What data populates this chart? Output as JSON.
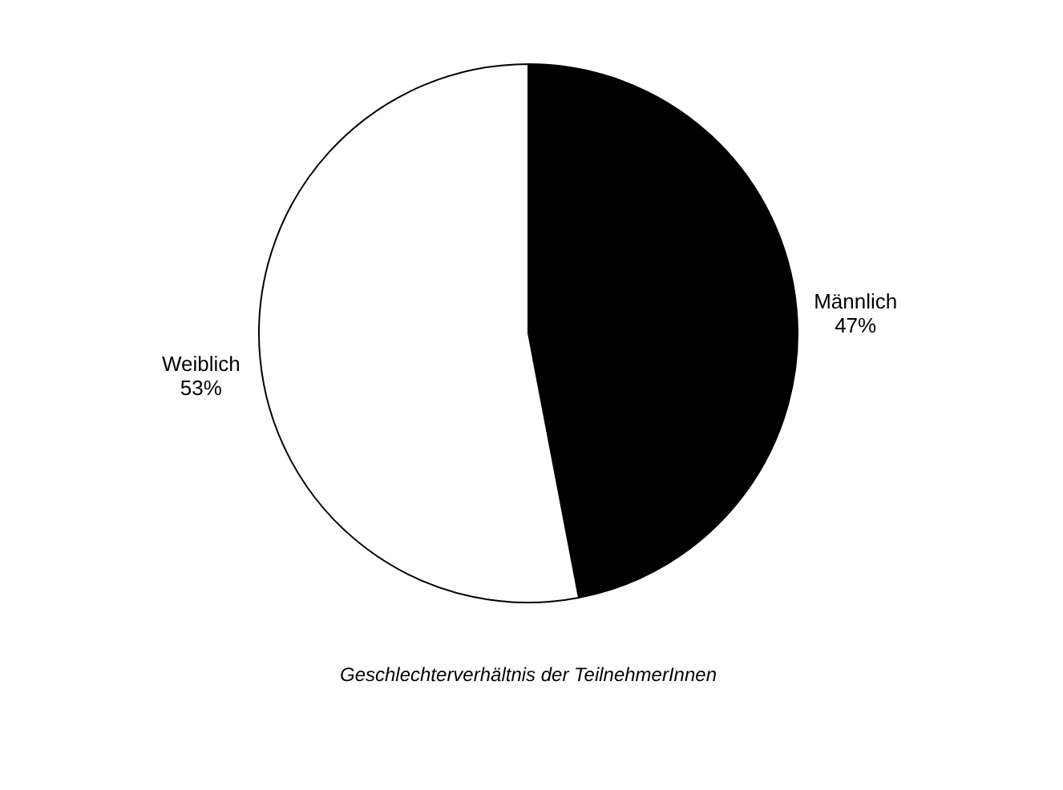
{
  "chart_data": {
    "type": "pie",
    "categories": [
      "Männlich",
      "Weiblich"
    ],
    "values": [
      47,
      53
    ],
    "value_labels": [
      "47%",
      "53%"
    ],
    "colors": [
      "#000000",
      "#ffffff"
    ],
    "annotations": [
      "Geschlechterverhältnis der TeilnehmerInnen"
    ],
    "legend": false
  }
}
